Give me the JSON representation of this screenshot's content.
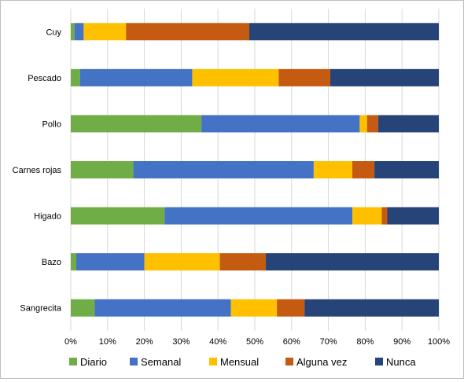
{
  "chart_data": {
    "type": "bar",
    "orientation": "horizontal",
    "stacked": "percent",
    "categories": [
      "Cuy",
      "Pescado",
      "Pollo",
      "Carnes rojas",
      "Higado",
      "Bazo",
      "Sangrecita"
    ],
    "series": [
      {
        "name": "Diario",
        "color": "#70ad47",
        "values": [
          1,
          2.5,
          35.5,
          17,
          25.5,
          1.5,
          6.5
        ]
      },
      {
        "name": "Semanal",
        "color": "#4472c4",
        "values": [
          2.5,
          30.5,
          43,
          49,
          51,
          18.5,
          37
        ]
      },
      {
        "name": "Mensual",
        "color": "#ffc000",
        "values": [
          11.5,
          23.5,
          2,
          10.5,
          8,
          20.5,
          12.5
        ]
      },
      {
        "name": "Alguna vez",
        "color": "#c55a11",
        "values": [
          33.5,
          14,
          3,
          6,
          1.5,
          12.5,
          7.5
        ]
      },
      {
        "name": "Nunca",
        "color": "#264478",
        "values": [
          51.5,
          29.5,
          16.5,
          17.5,
          14,
          47,
          36.5
        ]
      }
    ],
    "xlim": [
      0,
      100
    ],
    "xticks": [
      "0%",
      "10%",
      "20%",
      "30%",
      "40%",
      "50%",
      "60%",
      "70%",
      "80%",
      "90%",
      "100%"
    ],
    "grid": true,
    "legend_position": "bottom",
    "title": "",
    "xlabel": "",
    "ylabel": ""
  }
}
